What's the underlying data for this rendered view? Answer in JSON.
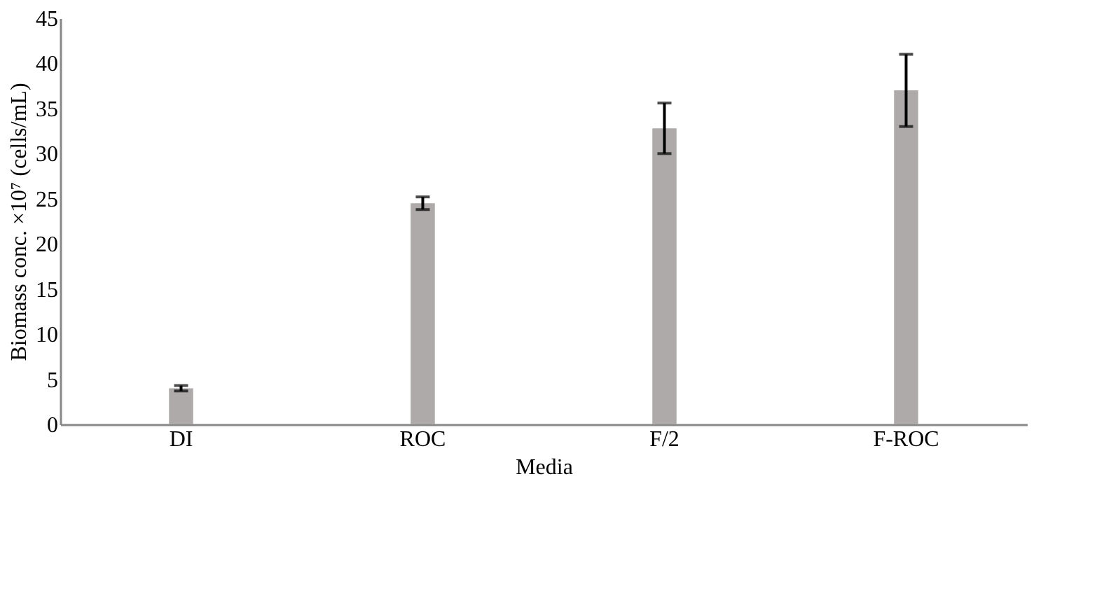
{
  "chart_data": {
    "type": "bar",
    "xlabel": "Media",
    "ylabel": "Biomass conc. ×10⁷ (cells/mL)",
    "categories": [
      "DI",
      "ROC",
      "F/2",
      "F-ROC"
    ],
    "values": [
      4.0,
      24.5,
      32.8,
      37.0
    ],
    "errors": [
      0.3,
      0.7,
      2.8,
      4.0
    ],
    "color": "#aeaaaa",
    "ylim": [
      0,
      45
    ],
    "yticks": [
      0,
      5,
      10,
      15,
      20,
      25,
      30,
      35,
      40,
      45
    ],
    "grid": false
  }
}
